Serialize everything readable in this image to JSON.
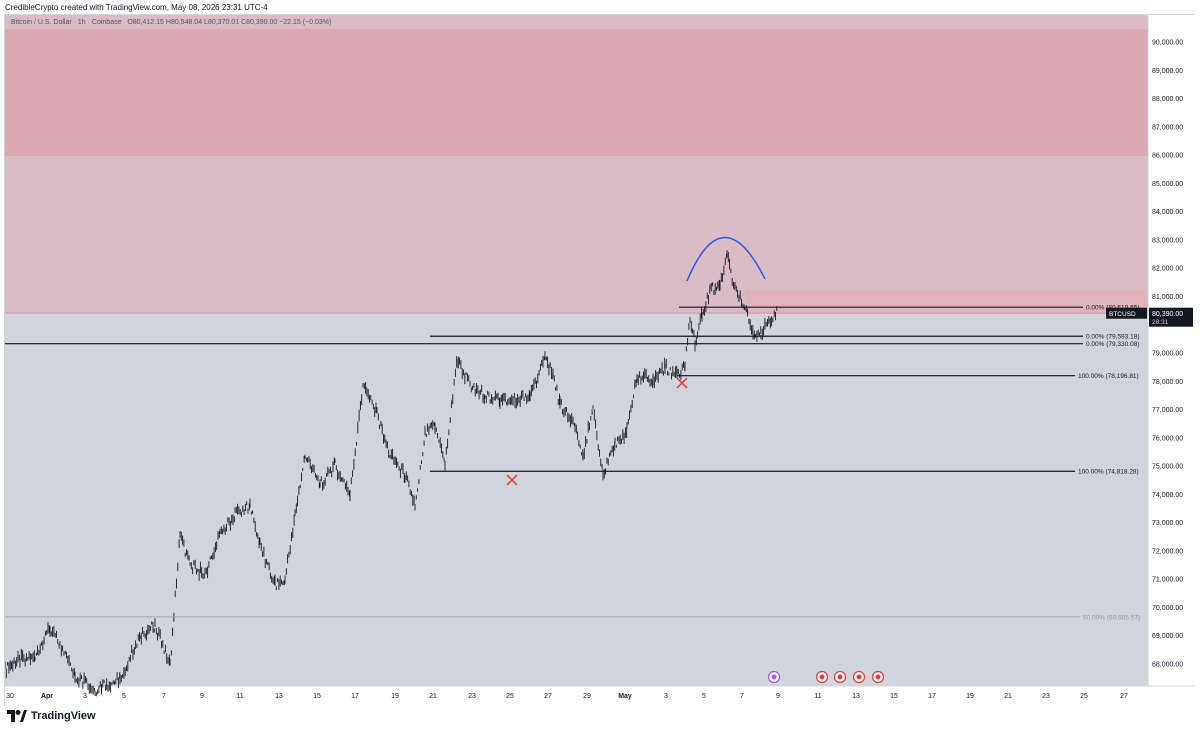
{
  "header": {
    "attribution": "CredibleCrypto created with TradingView.com, May 08, 2026 23:31 UTC-4"
  },
  "legend": {
    "symbol": "Bitcoin / U.S. Dollar · 1h · Coinbase",
    "open": "O80,412.15",
    "high": "H80,548.04",
    "low": "L80,370.01",
    "close": "C80,390.00",
    "change": "−22.15 (−0.03%)"
  },
  "price_axis": {
    "labels": [
      "90,000.00",
      "89,000.00",
      "88,000.00",
      "87,000.00",
      "86,000.00",
      "85,000.00",
      "84,000.00",
      "83,000.00",
      "82,000.00",
      "81,000.00",
      "79,000.00",
      "78,000.00",
      "77,000.00",
      "76,000.00",
      "75,000.00",
      "74,000.00",
      "73,000.00",
      "72,000.00",
      "71,000.00",
      "70,000.00",
      "69,000.00",
      "68,000.00"
    ],
    "symbol_tag": "BTCUSD",
    "last_price": "80,390.00",
    "countdown": "28:31"
  },
  "time_axis": {
    "labels": [
      "30",
      "Apr",
      "3",
      "5",
      "7",
      "9",
      "11",
      "13",
      "15",
      "17",
      "19",
      "21",
      "23",
      "25",
      "27",
      "29",
      "May",
      "3",
      "5",
      "7",
      "9",
      "11",
      "13",
      "15",
      "17",
      "19",
      "21",
      "23",
      "25",
      "27"
    ]
  },
  "fib_levels": [
    {
      "label": "0.00% (80,619.65)"
    },
    {
      "label": "0.00% (79,593.18)"
    },
    {
      "label": "0.00% (79,330.08)"
    },
    {
      "label": "100.00% (78,196.81)"
    },
    {
      "label": "100.00% (74,818.28)"
    },
    {
      "label": "50.00% (69,665.57)"
    }
  ],
  "footer": {
    "brand": "TradingView"
  },
  "colors": {
    "chart_bg": "#d1d4dc",
    "upper_zone": "#d9bcc6",
    "red_zone": "#dca8b2",
    "red_band": "#e2b3bb",
    "marker_red": "#e53935",
    "arc_blue": "#2f55e8"
  }
}
